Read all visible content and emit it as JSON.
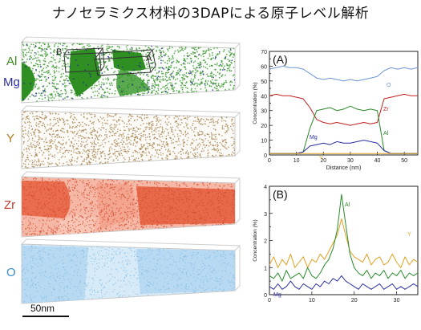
{
  "title": "ナノセラミクス材料の3DAPによる原子レベル解析",
  "maps": {
    "labels": [
      {
        "text": "Al",
        "color": "#3a8a1e"
      },
      {
        "text": "Mg",
        "color": "#2b2f9e"
      },
      {
        "text": "Y",
        "color": "#b07a1a"
      },
      {
        "text": "Zr",
        "color": "#c0392b"
      },
      {
        "text": "O",
        "color": "#3a8fd0"
      }
    ],
    "box_labels": [
      "B",
      "A"
    ],
    "scale_bar": "50nm",
    "colors": {
      "al": "#2f8f23",
      "mg": "#22268f",
      "y": "#a07a40",
      "zr": "#e05a3a",
      "o": "#8cc4ea"
    }
  },
  "chart_data": [
    {
      "type": "line",
      "panel_label": "(A)",
      "xlabel": "Distance (nm)",
      "ylabel": "Concentration (%)",
      "xlim": [
        0,
        55
      ],
      "ylim": [
        0,
        70
      ],
      "xticks": [
        0,
        10,
        20,
        30,
        40,
        50
      ],
      "yticks": [
        0,
        5,
        10,
        15,
        20,
        25,
        30,
        35,
        40,
        45,
        50,
        55,
        60,
        65,
        70
      ],
      "x": [
        0,
        2.5,
        5,
        7.5,
        10,
        12.5,
        15,
        17.5,
        20,
        22.5,
        25,
        27.5,
        30,
        32.5,
        35,
        37.5,
        40,
        42.5,
        45,
        47.5,
        50,
        52.5,
        55
      ],
      "series": [
        {
          "name": "O",
          "color": "#6f95d6",
          "values": [
            58,
            59,
            60,
            59,
            59,
            58,
            55,
            52,
            51,
            52,
            51,
            50,
            51,
            50,
            51,
            52,
            53,
            57,
            59,
            58,
            59,
            58,
            59
          ]
        },
        {
          "name": "Zr",
          "color": "#c02020",
          "values": [
            40,
            41,
            40,
            40,
            39,
            38,
            32,
            24,
            22,
            21,
            22,
            21,
            20,
            21,
            22,
            21,
            22,
            38,
            39,
            40,
            41,
            40,
            40
          ]
        },
        {
          "name": "Al",
          "color": "#2a8a2a",
          "values": [
            1,
            1,
            1,
            1,
            1,
            2,
            18,
            30,
            31,
            32,
            30,
            31,
            33,
            31,
            30,
            31,
            30,
            3,
            1,
            1,
            1,
            1,
            1
          ]
        },
        {
          "name": "Mg",
          "color": "#2b2fa0",
          "values": [
            1,
            1,
            1,
            1,
            1,
            2,
            6,
            7,
            8,
            7,
            9,
            8,
            8,
            9,
            10,
            9,
            8,
            3,
            1,
            1,
            1,
            1,
            1
          ]
        },
        {
          "name": "Y",
          "color": "#e0a020",
          "values": [
            1,
            1,
            1,
            1,
            1,
            1,
            1,
            1,
            1,
            1,
            1,
            1,
            1,
            1,
            1,
            1,
            1,
            1,
            1,
            1,
            1,
            1,
            1
          ]
        }
      ]
    },
    {
      "type": "line",
      "panel_label": "(B)",
      "xlabel": "",
      "ylabel": "Concentration (%)",
      "xlim": [
        0,
        35
      ],
      "ylim": [
        0,
        4
      ],
      "xticks": [
        0,
        10,
        20,
        30
      ],
      "yticks": [
        0,
        0.5,
        1,
        1.5,
        2,
        2.5,
        3,
        3.5,
        4
      ],
      "x": [
        0,
        1,
        2,
        3,
        4,
        5,
        6,
        7,
        8,
        9,
        10,
        11,
        12,
        13,
        14,
        15,
        16,
        17,
        18,
        19,
        20,
        21,
        22,
        23,
        24,
        25,
        26,
        27,
        28,
        29,
        30,
        31,
        32,
        33,
        34,
        35
      ],
      "series": [
        {
          "name": "Y",
          "color": "#e0a020",
          "values": [
            1.1,
            1.4,
            1.0,
            1.3,
            1.1,
            1.5,
            1.0,
            1.2,
            1.4,
            1.0,
            1.3,
            1.2,
            1.5,
            1.3,
            1.6,
            1.9,
            2.2,
            2.8,
            2.2,
            1.6,
            1.4,
            1.3,
            1.2,
            1.5,
            1.1,
            1.3,
            1.4,
            1.1,
            1.2,
            1.5,
            1.2,
            1.0,
            1.4,
            1.1,
            1.3,
            1.2
          ]
        },
        {
          "name": "Al",
          "color": "#2a8a2a",
          "values": [
            0.7,
            0.6,
            0.8,
            0.5,
            0.9,
            0.6,
            0.7,
            0.8,
            0.6,
            1.0,
            0.7,
            0.6,
            0.8,
            1.1,
            1.3,
            1.7,
            2.4,
            3.7,
            2.6,
            1.5,
            1.0,
            0.8,
            0.7,
            0.9,
            0.6,
            0.8,
            0.7,
            0.9,
            0.6,
            0.8,
            0.7,
            0.9,
            0.6,
            0.8,
            0.7,
            0.8
          ]
        },
        {
          "name": "Mg",
          "color": "#2b2fa0",
          "values": [
            0.3,
            0.2,
            0.4,
            0.2,
            0.3,
            0.5,
            0.3,
            0.2,
            0.4,
            0.3,
            0.2,
            0.4,
            0.3,
            0.5,
            0.4,
            0.6,
            0.5,
            0.7,
            0.5,
            0.4,
            0.3,
            0.2,
            0.4,
            0.3,
            0.2,
            0.3,
            0.4,
            0.2,
            0.3,
            0.4,
            0.2,
            0.3,
            0.2,
            0.3,
            0.4,
            0.3
          ]
        }
      ]
    }
  ]
}
